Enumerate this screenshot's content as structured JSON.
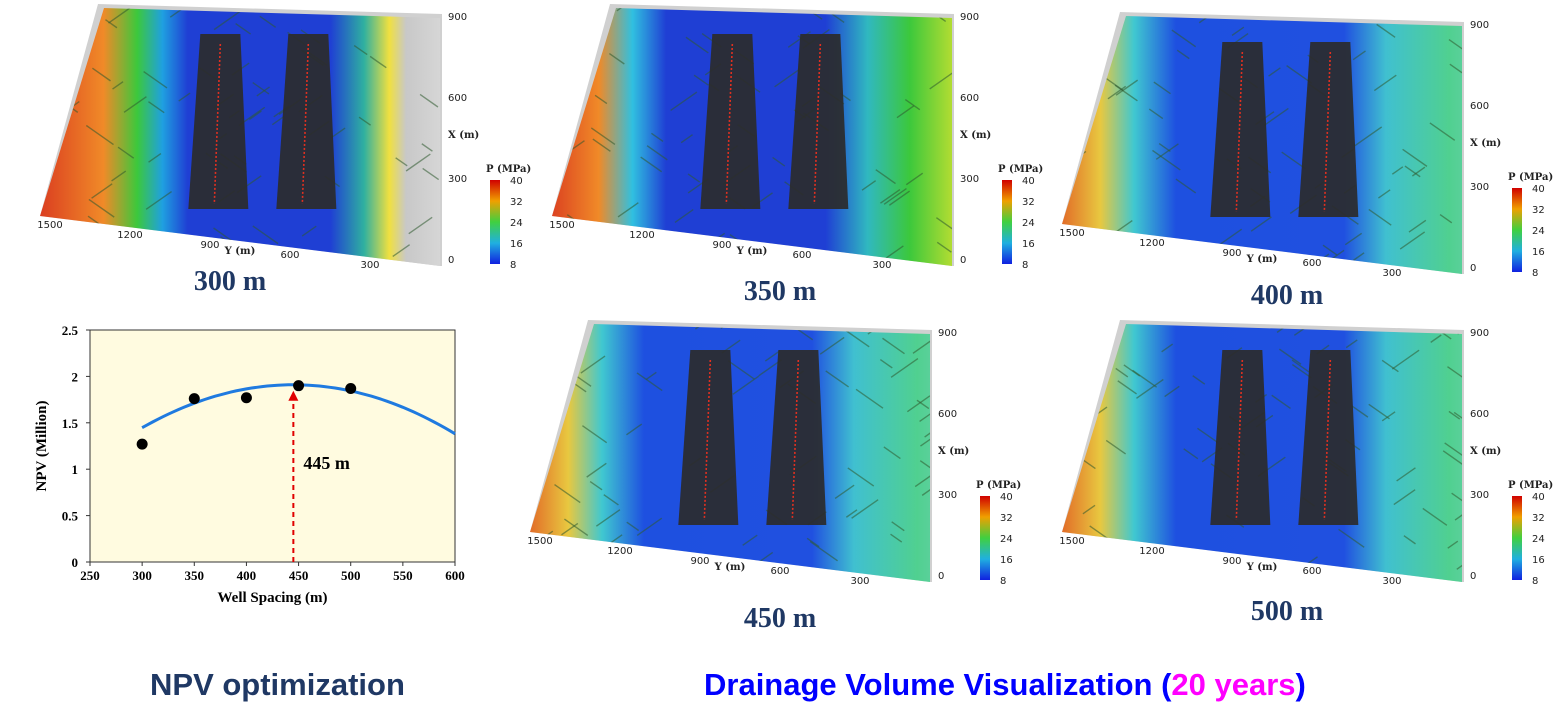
{
  "panels": [
    {
      "caption": "300 m",
      "footprint": "narrow"
    },
    {
      "caption": "350 m",
      "footprint": "medium"
    },
    {
      "caption": "400 m",
      "footprint": "wide"
    },
    {
      "caption": "450 m",
      "footprint": "wide"
    },
    {
      "caption": "500 m",
      "footprint": "wide"
    }
  ],
  "map_axes": {
    "x_label": "X (m)",
    "x_ticks": [
      "900",
      "600",
      "300",
      "0"
    ],
    "y_label": "Y (m)",
    "y_ticks": [
      "1500",
      "1200",
      "900",
      "600",
      "300"
    ],
    "colorbar_title": "P (MPa)",
    "colorbar_ticks": [
      "40",
      "32",
      "24",
      "16",
      "8"
    ]
  },
  "colors": {
    "high": "#d7301f",
    "mid": "#3cc83c",
    "low": "#1f3fd4",
    "well": "#2b2b2b",
    "caption": "#1f3864",
    "footer_blue": "#0000ff",
    "footer_magenta": "#ff00ff",
    "curve": "#1f7ae0",
    "plot_bg": "#fffbe0"
  },
  "chart_data": {
    "type": "scatter",
    "title": "",
    "xlabel": "Well Spacing (m)",
    "ylabel": "NPV (Million)",
    "xlim": [
      250,
      600
    ],
    "ylim": [
      0,
      2.5
    ],
    "x_ticks": [
      "250",
      "300",
      "350",
      "400",
      "450",
      "500",
      "550",
      "600"
    ],
    "y_ticks": [
      "0",
      "0.5",
      "1",
      "1.5",
      "2",
      "2.5"
    ],
    "x": [
      300,
      350,
      400,
      450,
      500
    ],
    "y": [
      1.27,
      1.76,
      1.77,
      1.9,
      1.87
    ],
    "fit_curve": {
      "vertex_x": 445,
      "vertex_y": 1.91,
      "curvature": -2.2e-05
    },
    "optimum": {
      "x": 445,
      "label": "445 m"
    }
  },
  "footer": {
    "left": "NPV optimization",
    "right_pre": "Drainage Volume Visualization (",
    "right_highlight": "20 years",
    "right_post": ")"
  }
}
